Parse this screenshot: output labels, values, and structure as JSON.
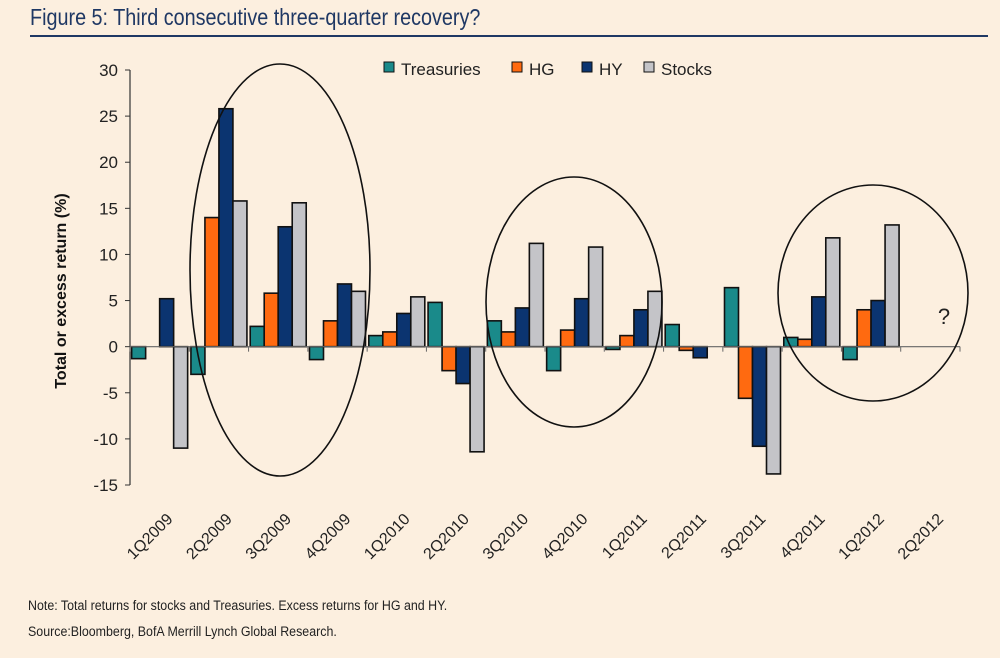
{
  "header": {
    "title": "Figure 5: Third consecutive three-quarter recovery?"
  },
  "footer": {
    "note": "Note:  Total returns for stocks and Treasuries.  Excess returns for HG and HY.",
    "source": "Source:Bloomberg, BofA Merrill Lynch Global Research."
  },
  "chart_data": {
    "type": "bar",
    "title": "Figure 5: Third consecutive three-quarter recovery?",
    "xlabel": "",
    "ylabel": "Total or excess return (%)",
    "ylim": [
      -15,
      30
    ],
    "yticks": [
      30,
      25,
      20,
      15,
      10,
      5,
      0,
      -5,
      -10,
      -15
    ],
    "grid": false,
    "legend_position": "top-center",
    "categories": [
      "1Q2009",
      "2Q2009",
      "3Q2009",
      "4Q2009",
      "1Q2010",
      "2Q2010",
      "3Q2010",
      "4Q2010",
      "1Q2011",
      "2Q2011",
      "3Q2011",
      "4Q2011",
      "1Q2012",
      "2Q2012"
    ],
    "series": [
      {
        "name": "Treasuries",
        "color": "#1a8a8a",
        "values": [
          -1.3,
          -3.0,
          2.2,
          -1.4,
          1.2,
          4.8,
          2.8,
          -2.6,
          -0.3,
          2.4,
          6.4,
          1.0,
          -1.4,
          null
        ]
      },
      {
        "name": "HG",
        "color": "#ff6a10",
        "values": [
          0,
          14.0,
          5.8,
          2.8,
          1.6,
          -2.6,
          1.6,
          1.8,
          1.2,
          -0.4,
          -5.6,
          0.8,
          4.0,
          null
        ]
      },
      {
        "name": "HY",
        "color": "#0b3470",
        "values": [
          5.2,
          25.8,
          13.0,
          6.8,
          3.6,
          -4.0,
          4.2,
          5.2,
          4.0,
          -1.2,
          -10.8,
          5.4,
          5.0,
          null
        ]
      },
      {
        "name": "Stocks",
        "color": "#c4c4c8",
        "values": [
          -11.0,
          15.8,
          15.6,
          6.0,
          5.4,
          -11.4,
          11.2,
          10.8,
          6.0,
          0,
          -13.8,
          11.8,
          13.2,
          null
        ]
      }
    ],
    "annotations": [
      {
        "type": "ellipse",
        "label": "recovery-2009",
        "span": [
          "2Q2009",
          "4Q2009"
        ]
      },
      {
        "type": "ellipse",
        "label": "recovery-2010",
        "span": [
          "3Q2010",
          "1Q2011"
        ]
      },
      {
        "type": "ellipse",
        "label": "recovery-2012",
        "span": [
          "4Q2011",
          "2Q2012"
        ]
      },
      {
        "type": "text",
        "text": "?",
        "at": "2Q2012"
      }
    ]
  }
}
